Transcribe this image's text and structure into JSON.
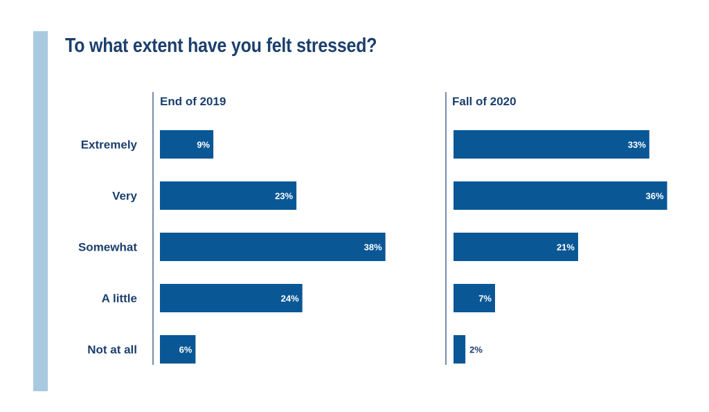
{
  "chart_data": {
    "type": "bar",
    "orientation": "horizontal",
    "title": "To what extent have you felt stressed?",
    "categories": [
      "Extremely",
      "Very",
      "Somewhat",
      "A little",
      "Not at all"
    ],
    "unit": "%",
    "panels": [
      {
        "name": "End of 2019",
        "values": [
          9,
          23,
          38,
          24,
          6
        ]
      },
      {
        "name": "Fall of 2020",
        "values": [
          33,
          36,
          21,
          7,
          2
        ]
      }
    ],
    "bar_color": "#0a5796",
    "text_color": "#1b3f6e",
    "grid": false,
    "legend": "none"
  },
  "decor": {
    "stripe_color": "#a9c9df"
  }
}
